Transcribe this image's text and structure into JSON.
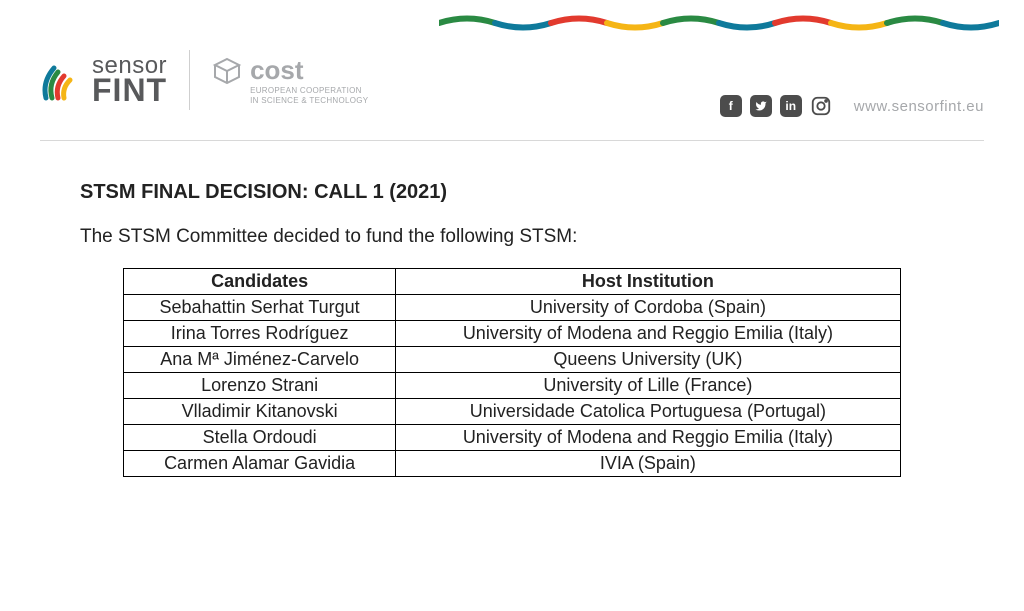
{
  "header": {
    "sensorfint": {
      "top": "sensor",
      "bottom": "FINT"
    },
    "cost": {
      "brand": "cost",
      "tag1": "EUROPEAN COOPERATION",
      "tag2": "IN SCIENCE & TECHNOLOGY"
    },
    "url": "www.sensorfint.eu",
    "wave_colors": [
      "#2a8a43",
      "#0f7a9b",
      "#e23a2e",
      "#f5b515",
      "#2a8a43",
      "#0f7a9b",
      "#e23a2e",
      "#f5b515",
      "#2a8a43",
      "#0f7a9b"
    ],
    "sensorfint_mark_colors": {
      "c1": "#f5b515",
      "c2": "#e23a2e",
      "c3": "#2a8a43",
      "c4": "#0f7a9b"
    },
    "social_bg": "#4c4c4c"
  },
  "document": {
    "title": "STSM FINAL DECISION: CALL 1 (2021)",
    "intro": "The STSM Committee decided to fund the following STSM:",
    "table": {
      "columns": [
        "Candidates",
        "Host Institution"
      ],
      "rows": [
        [
          "Sebahattin Serhat Turgut",
          "University of Cordoba (Spain)"
        ],
        [
          "Irina Torres Rodríguez",
          "University of Modena and Reggio Emilia (Italy)"
        ],
        [
          "Ana Mª Jiménez-Carvelo",
          "Queens University (UK)"
        ],
        [
          "Lorenzo Strani",
          "University of Lille (France)"
        ],
        [
          "Vlladimir  Kitanovski",
          "Universidade Catolica Portuguesa (Portugal)"
        ],
        [
          "Stella Ordoudi",
          "University of Modena and Reggio Emilia (Italy)"
        ],
        [
          "Carmen  Alamar Gavidia",
          "IVIA (Spain)"
        ]
      ],
      "border_color": "#000000",
      "font_size": 18
    }
  }
}
